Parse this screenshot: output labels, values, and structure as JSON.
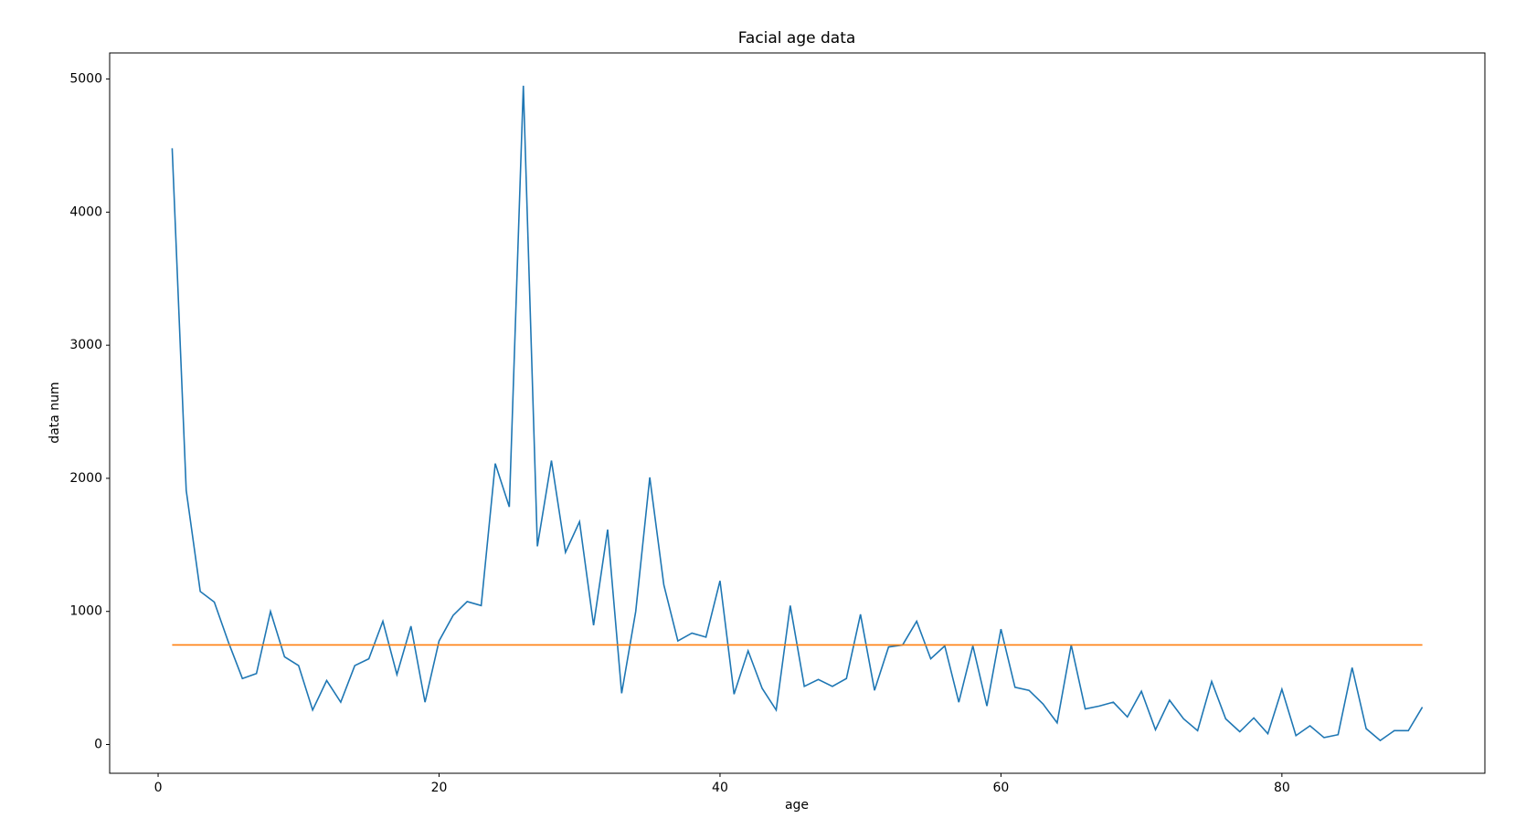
{
  "chart_data": {
    "type": "line",
    "title": "Facial age data",
    "x_label": "age",
    "y_label": "data num",
    "x": [
      1,
      2,
      3,
      4,
      5,
      6,
      7,
      8,
      9,
      10,
      11,
      12,
      13,
      14,
      15,
      16,
      17,
      18,
      19,
      20,
      21,
      22,
      23,
      24,
      25,
      26,
      27,
      28,
      29,
      30,
      31,
      32,
      33,
      34,
      35,
      36,
      37,
      38,
      39,
      40,
      41,
      42,
      43,
      44,
      45,
      46,
      47,
      48,
      49,
      50,
      51,
      52,
      53,
      54,
      55,
      56,
      57,
      58,
      59,
      60,
      61,
      62,
      63,
      64,
      65,
      66,
      67,
      68,
      69,
      70,
      71,
      72,
      73,
      74,
      75,
      76,
      77,
      78,
      79,
      80,
      81,
      82,
      83,
      84,
      85,
      86,
      87,
      88,
      89,
      90
    ],
    "series": [
      {
        "color": "#1f77b4",
        "values": [
          4480,
          1910,
          1150,
          1070,
          770,
          496,
          533,
          1000,
          659,
          593,
          259,
          481,
          318,
          593,
          644,
          926,
          526,
          889,
          318,
          778,
          970,
          1074,
          1044,
          2111,
          1785,
          4950,
          1489,
          2133,
          1444,
          1674,
          896,
          1615,
          385,
          1000,
          2007,
          1200,
          778,
          837,
          807,
          1230,
          378,
          704,
          422,
          259,
          1044,
          437,
          489,
          437,
          496,
          978,
          407,
          733,
          748,
          926,
          644,
          741,
          318,
          741,
          289,
          867,
          430,
          407,
          304,
          163,
          748,
          267,
          289,
          318,
          207,
          400,
          111,
          333,
          193,
          104,
          474,
          193,
          96,
          200,
          81,
          415,
          67,
          141,
          52,
          74,
          578,
          119,
          30,
          104,
          104,
          281
        ]
      },
      {
        "color": "#ff7f0e",
        "x": [
          1,
          90
        ],
        "values": [
          748,
          748
        ]
      }
    ],
    "xlim": [
      -3.45,
      94.45
    ],
    "ylim": [
      -216,
      5196
    ],
    "xticks": [
      0,
      20,
      40,
      60,
      80
    ],
    "yticks": [
      0,
      1000,
      2000,
      3000,
      4000,
      5000
    ]
  }
}
